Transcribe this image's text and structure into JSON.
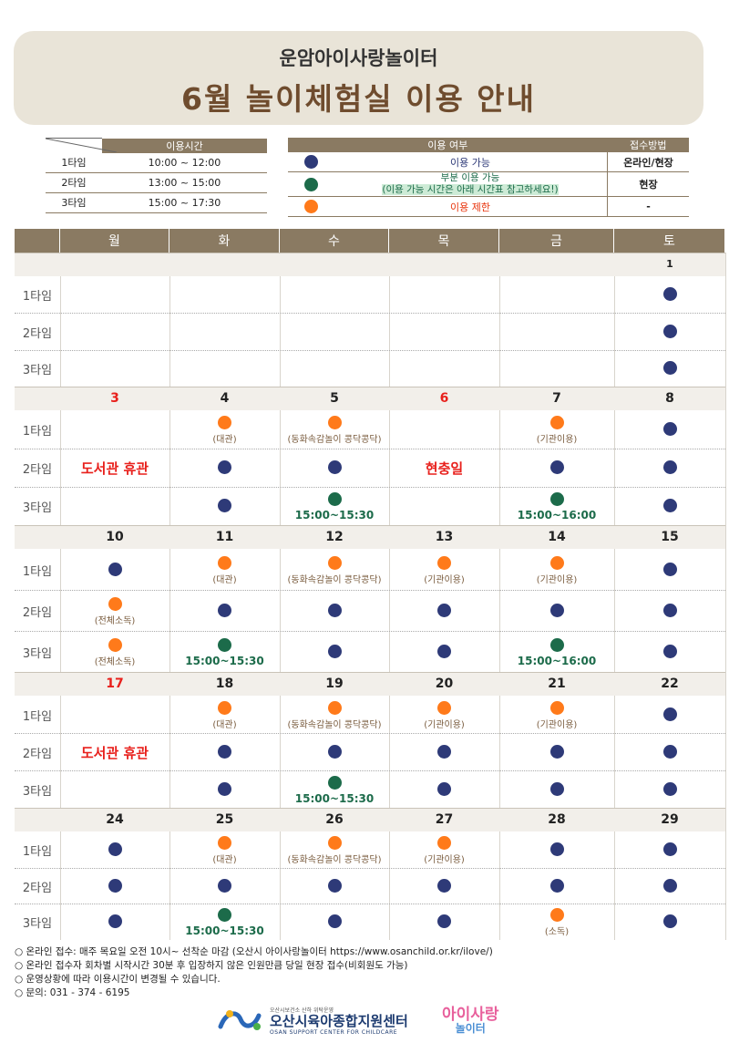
{
  "header": {
    "subtitle": "운암아이사랑놀이터",
    "title": "6월 놀이체험실 이용 안내"
  },
  "time_table": {
    "header": "이용시간",
    "rows": [
      {
        "slot": "1타임",
        "time": "10:00 ~ 12:00"
      },
      {
        "slot": "2타임",
        "time": "13:00 ~ 15:00"
      },
      {
        "slot": "3타임",
        "time": "15:00 ~ 17:30"
      }
    ]
  },
  "status_table": {
    "header_status": "이용 여부",
    "header_method": "접수방법",
    "rows": [
      {
        "color": "#2e3a78",
        "label": "이용 가능",
        "method": "온라인/현장"
      },
      {
        "color": "#1c6b4a",
        "label": "부분 이용 가능",
        "label2": "(이용 가능 시간은 아래 시간표 참고하세요!)",
        "method": "현장"
      },
      {
        "color": "#ff7a1a",
        "label": "이용 제한",
        "method": "-"
      }
    ]
  },
  "colors": {
    "available": "#2e3a78",
    "partial": "#1c6b4a",
    "restricted": "#ff7a1a",
    "holiday_red": "#e8201c",
    "header_brown": "#8a7a62"
  },
  "calendar": {
    "weekdays": [
      "월",
      "화",
      "수",
      "목",
      "금",
      "토"
    ],
    "slot_labels": [
      "1타임",
      "2타임",
      "3타임"
    ],
    "special": {
      "library_closed": "도서관 휴관",
      "memorial_day": "현충일"
    },
    "weeks": [
      {
        "dates": [
          "",
          "",
          "",
          "",
          "",
          "1"
        ],
        "red": [],
        "cells": [
          [
            null,
            null,
            null,
            null,
            null,
            {
              "s": "a"
            }
          ],
          [
            null,
            null,
            null,
            null,
            null,
            {
              "s": "a"
            }
          ],
          [
            null,
            null,
            null,
            null,
            null,
            {
              "s": "a"
            }
          ]
        ]
      },
      {
        "dates": [
          "3",
          "4",
          "5",
          "6",
          "7",
          "8"
        ],
        "red": [
          0,
          3
        ],
        "cells": [
          [
            null,
            {
              "s": "r",
              "n": "(대관)"
            },
            {
              "s": "r",
              "n": "(동화속감놀이 콩닥콩닥)"
            },
            null,
            {
              "s": "r",
              "n": "(기관이용)"
            },
            {
              "s": "a"
            }
          ],
          [
            null,
            {
              "s": "a"
            },
            {
              "s": "a"
            },
            null,
            {
              "s": "a"
            },
            {
              "s": "a"
            }
          ],
          [
            null,
            {
              "s": "a"
            },
            {
              "s": "p",
              "t": "15:00~15:30"
            },
            null,
            {
              "s": "p",
              "t": "15:00~16:00"
            },
            {
              "s": "a"
            }
          ]
        ]
      },
      {
        "dates": [
          "10",
          "11",
          "12",
          "13",
          "14",
          "15"
        ],
        "red": [],
        "cells": [
          [
            {
              "s": "a"
            },
            {
              "s": "r",
              "n": "(대관)"
            },
            {
              "s": "r",
              "n": "(동화속감놀이 콩닥콩닥)"
            },
            {
              "s": "r",
              "n": "(기관이용)"
            },
            {
              "s": "r",
              "n": "(기관이용)"
            },
            {
              "s": "a"
            }
          ],
          [
            {
              "s": "r",
              "n": "(전체소독)"
            },
            {
              "s": "a"
            },
            {
              "s": "a"
            },
            {
              "s": "a"
            },
            {
              "s": "a"
            },
            {
              "s": "a"
            }
          ],
          [
            {
              "s": "r",
              "n": "(전체소독)"
            },
            {
              "s": "p",
              "t": "15:00~15:30"
            },
            {
              "s": "a"
            },
            {
              "s": "a"
            },
            {
              "s": "p",
              "t": "15:00~16:00"
            },
            {
              "s": "a"
            }
          ]
        ]
      },
      {
        "dates": [
          "17",
          "18",
          "19",
          "20",
          "21",
          "22"
        ],
        "red": [
          0
        ],
        "cells": [
          [
            null,
            {
              "s": "r",
              "n": "(대관)"
            },
            {
              "s": "r",
              "n": "(동화속감놀이 콩닥콩닥)"
            },
            {
              "s": "r",
              "n": "(기관이용)"
            },
            {
              "s": "r",
              "n": "(기관이용)"
            },
            {
              "s": "a"
            }
          ],
          [
            null,
            {
              "s": "a"
            },
            {
              "s": "a"
            },
            {
              "s": "a"
            },
            {
              "s": "a"
            },
            {
              "s": "a"
            }
          ],
          [
            null,
            {
              "s": "a"
            },
            {
              "s": "p",
              "t": "15:00~15:30"
            },
            {
              "s": "a"
            },
            {
              "s": "a"
            },
            {
              "s": "a"
            }
          ]
        ]
      },
      {
        "dates": [
          "24",
          "25",
          "26",
          "27",
          "28",
          "29"
        ],
        "red": [],
        "cells": [
          [
            {
              "s": "a"
            },
            {
              "s": "r",
              "n": "(대관)"
            },
            {
              "s": "r",
              "n": "(동화속감놀이 콩닥콩닥)"
            },
            {
              "s": "r",
              "n": "(기관이용)"
            },
            {
              "s": "a"
            },
            {
              "s": "a"
            }
          ],
          [
            {
              "s": "a"
            },
            {
              "s": "a"
            },
            {
              "s": "a"
            },
            {
              "s": "a"
            },
            {
              "s": "a"
            },
            {
              "s": "a"
            }
          ],
          [
            {
              "s": "a"
            },
            {
              "s": "p",
              "t": "15:00~15:30"
            },
            {
              "s": "a"
            },
            {
              "s": "a"
            },
            {
              "s": "r",
              "n": "(소독)"
            },
            {
              "s": "a"
            }
          ]
        ]
      }
    ]
  },
  "notes": [
    "○ 온라인 접수: 매주 목요일 오전 10시~ 선착순 마감 (오산시 아이사랑놀이터 https://www.osanchild.or.kr/ilove/)",
    "○ 온라인 접수자 회차별 시작시간 30분 후 입장하지 않은 인원만큼 당일 현장 접수(비회원도 가능)",
    "○ 운영상황에 따라 이용시간이 변경될 수 있습니다.",
    "○ 문의: 031 - 374 - 6195"
  ],
  "footer": {
    "org_small": "오산시보건소 산하 위탁운영",
    "org_name": "오산시육아종합지원센터",
    "org_eng": "OSAN SUPPORT CENTER FOR CHILDCARE",
    "brand_line1": "아이사랑",
    "brand_line2": "놀이터"
  }
}
